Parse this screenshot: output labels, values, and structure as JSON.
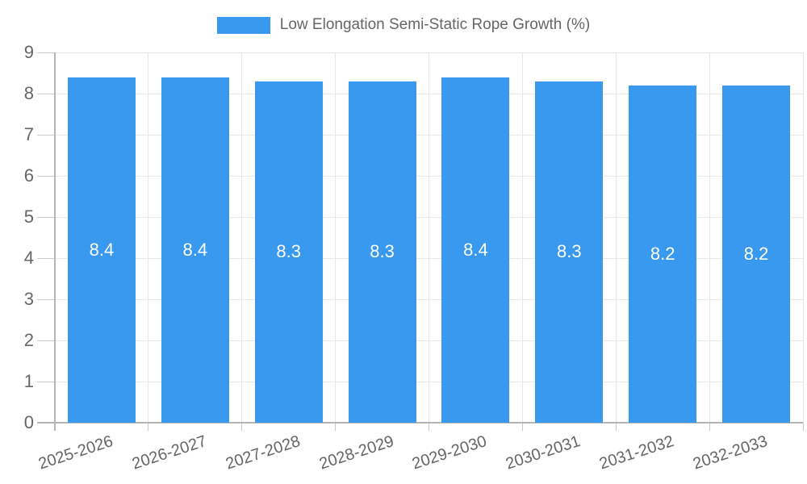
{
  "chart_data": {
    "type": "bar",
    "series_name": "Low Elongation Semi-Static Rope Growth (%)",
    "categories": [
      "2025-2026",
      "2026-2027",
      "2027-2028",
      "2028-2029",
      "2029-2030",
      "2030-2031",
      "2031-2032",
      "2032-2033"
    ],
    "values": [
      8.4,
      8.4,
      8.3,
      8.3,
      8.4,
      8.3,
      8.2,
      8.2
    ],
    "value_labels": [
      "8.4",
      "8.4",
      "8.3",
      "8.3",
      "8.4",
      "8.3",
      "8.2",
      "8.2"
    ],
    "ytick_labels": [
      "0",
      "1",
      "2",
      "3",
      "4",
      "5",
      "6",
      "7",
      "8",
      "9"
    ],
    "ylim": [
      0,
      9
    ],
    "ytick_step": 1,
    "grid": true,
    "legend_position": "top",
    "xlabel": "",
    "ylabel": "",
    "colors": {
      "bar": "#3899ef",
      "value_label": "#ffffff",
      "axis_text": "#666666",
      "grid_line": "#e8e8e8",
      "axis_line": "#b5b5b5",
      "tick_line": "#c9c9c9"
    }
  }
}
